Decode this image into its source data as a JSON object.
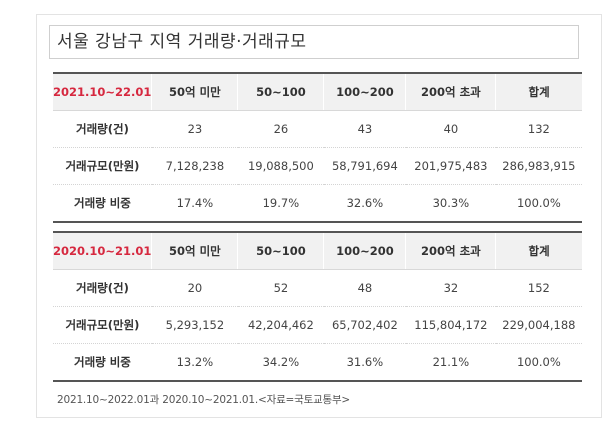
{
  "title": "서울 강남구 지역 거래량·거래규모",
  "tables": [
    {
      "period": "2021.10~22.01",
      "headers": [
        "50억 미만",
        "50~100",
        "100~200",
        "200억 초과",
        "합계"
      ],
      "rows": [
        {
          "label": "거래량(건)",
          "values": [
            "23",
            "26",
            "43",
            "40",
            "132"
          ]
        },
        {
          "label": "거래규모(만원)",
          "values": [
            "7,128,238",
            "19,088,500",
            "58,791,694",
            "201,975,483",
            "286,983,915"
          ]
        },
        {
          "label": "거래량 비중",
          "values": [
            "17.4%",
            "19.7%",
            "32.6%",
            "30.3%",
            "100.0%"
          ]
        }
      ]
    },
    {
      "period": "2020.10~21.01",
      "headers": [
        "50억 미만",
        "50~100",
        "100~200",
        "200억 초과",
        "합계"
      ],
      "rows": [
        {
          "label": "거래량(건)",
          "values": [
            "20",
            "52",
            "48",
            "32",
            "152"
          ]
        },
        {
          "label": "거래규모(만원)",
          "values": [
            "5,293,152",
            "42,204,462",
            "65,702,402",
            "115,804,172",
            "229,004,188"
          ]
        },
        {
          "label": "거래량 비중",
          "values": [
            "13.2%",
            "34.2%",
            "31.6%",
            "21.1%",
            "100.0%"
          ]
        }
      ]
    }
  ],
  "note": "2021.10~2022.01과 2020.10~2021.01.<자료=국토교통부>"
}
